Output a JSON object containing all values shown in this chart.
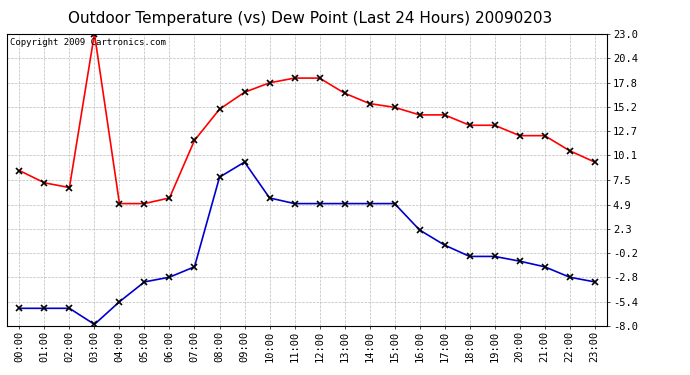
{
  "title": "Outdoor Temperature (vs) Dew Point (Last 24 Hours) 20090203",
  "copyright": "Copyright 2009 Cartronics.com",
  "x_labels": [
    "00:00",
    "01:00",
    "02:00",
    "03:00",
    "04:00",
    "05:00",
    "06:00",
    "07:00",
    "08:00",
    "09:00",
    "10:00",
    "11:00",
    "12:00",
    "13:00",
    "14:00",
    "15:00",
    "16:00",
    "17:00",
    "18:00",
    "19:00",
    "20:00",
    "21:00",
    "22:00",
    "23:00"
  ],
  "temp_red": [
    8.5,
    7.2,
    6.7,
    23.0,
    5.0,
    5.0,
    5.6,
    11.7,
    15.0,
    16.8,
    17.8,
    18.3,
    18.3,
    16.7,
    15.6,
    15.2,
    14.4,
    14.4,
    13.3,
    13.3,
    12.2,
    12.2,
    10.6,
    9.4
  ],
  "temp_blue": [
    -6.1,
    -6.1,
    -6.1,
    -7.8,
    -5.4,
    -3.3,
    -2.8,
    -1.7,
    7.8,
    9.4,
    5.6,
    5.0,
    5.0,
    5.0,
    5.0,
    5.0,
    2.2,
    0.6,
    -0.6,
    -0.6,
    -1.1,
    -1.7,
    -2.8,
    -3.3
  ],
  "ylim_min": -8.0,
  "ylim_max": 23.0,
  "yticks": [
    23.0,
    20.4,
    17.8,
    15.2,
    12.7,
    10.1,
    7.5,
    4.9,
    2.3,
    -0.2,
    -2.8,
    -5.4,
    -8.0
  ],
  "bg_color": "#ffffff",
  "grid_color": "#bbbbbb",
  "red_color": "#ff0000",
  "blue_color": "#0000cc",
  "title_fontsize": 11,
  "copyright_fontsize": 6.5,
  "tick_fontsize": 7.5
}
